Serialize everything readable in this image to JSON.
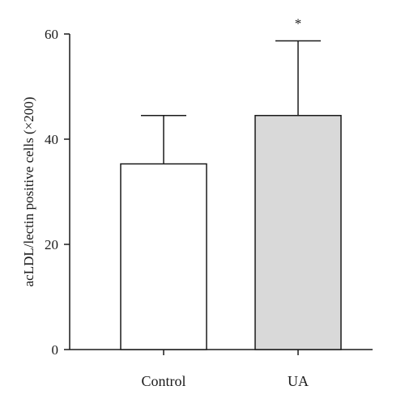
{
  "chart_data": {
    "type": "bar",
    "title": "",
    "xlabel": "",
    "ylabel": "acLDL/lectin positive cells (×200)",
    "categories": [
      "Control",
      "UA"
    ],
    "values": [
      35.3,
      44.5
    ],
    "error_upper": [
      44.5,
      58.7
    ],
    "significance": [
      "",
      "*"
    ],
    "bar_colors": [
      "#ffffff",
      "#d9d9d9"
    ],
    "ylim": [
      0,
      60
    ],
    "yticks": [
      0,
      20,
      40,
      60
    ],
    "grid": false,
    "legend": "none"
  }
}
